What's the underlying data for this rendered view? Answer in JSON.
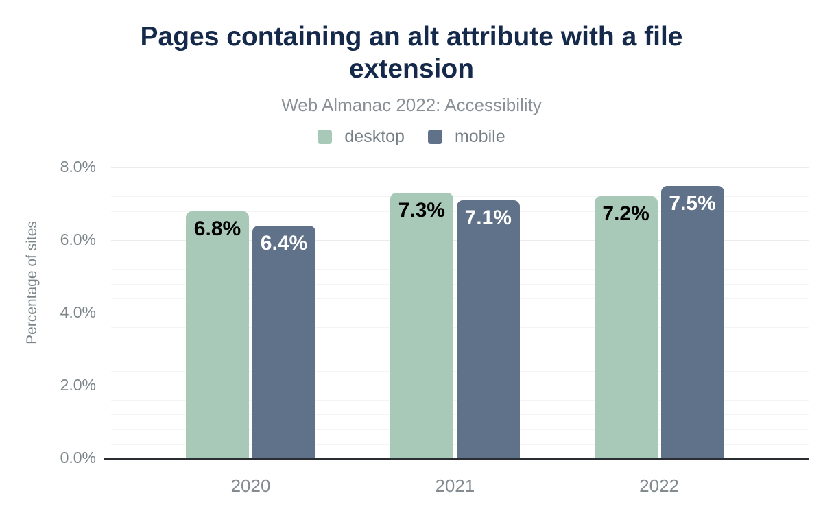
{
  "chart_data": {
    "type": "bar",
    "title": "Pages containing an alt attribute with a file\nextension",
    "subtitle": "Web Almanac 2022: Accessibility",
    "ylabel": "Percentage of sites",
    "xlabel": "",
    "categories": [
      "2020",
      "2021",
      "2022"
    ],
    "series": [
      {
        "name": "desktop",
        "color": "#a9c9b8",
        "value_label_color": "#000000",
        "values": [
          6.8,
          7.3,
          7.2
        ],
        "value_labels": [
          "6.8%",
          "7.3%",
          "7.2%"
        ]
      },
      {
        "name": "mobile",
        "color": "#60718a",
        "value_label_color": "#ffffff",
        "values": [
          6.4,
          7.1,
          7.5
        ],
        "value_labels": [
          "6.4%",
          "7.1%",
          "7.5%"
        ]
      }
    ],
    "ylim": [
      0,
      8
    ],
    "yticks": [
      {
        "value": 0,
        "label": "0.0%"
      },
      {
        "value": 2,
        "label": "2.0%"
      },
      {
        "value": 4,
        "label": "4.0%"
      },
      {
        "value": 6,
        "label": "6.0%"
      },
      {
        "value": 8,
        "label": "8.0%"
      }
    ],
    "minor_grid_step": 0.4,
    "grid": true,
    "legend_position": "top-center"
  },
  "theme": {
    "background": "#ffffff",
    "title_color": "#15294b",
    "subtitle_color": "#8a9196",
    "axis_text_color": "#7b8589",
    "xaxis_text_color": "#828c90",
    "legend_text_color": "#757f85",
    "grid_minor_color": "#f4f4f4",
    "grid_major_color": "#ebebeb",
    "axis_line_color": "#2a2d32"
  }
}
